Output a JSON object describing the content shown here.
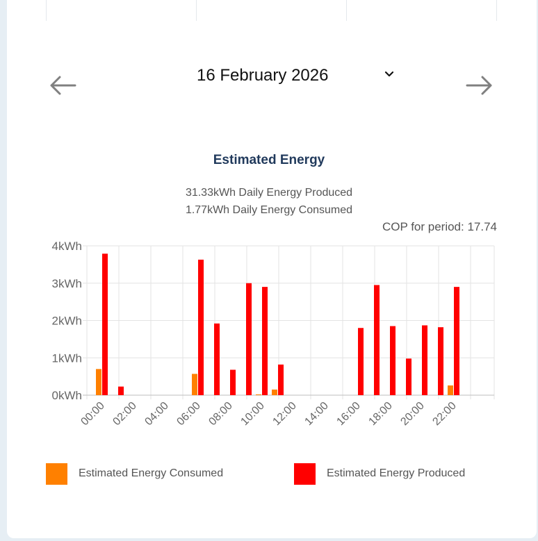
{
  "date_selector": {
    "label": "16 February 2026"
  },
  "navigation": {
    "prev_icon": "arrow-left-icon",
    "next_icon": "arrow-right-icon",
    "dropdown_icon": "chevron-down-icon"
  },
  "stats": {
    "produced": "31.33kWh Daily Energy Produced",
    "consumed": "1.77kWh Daily Energy Consumed",
    "cop": "COP for period: 17.74"
  },
  "colors": {
    "consumed": "#ff8000",
    "produced": "#ff0000",
    "title": "#213a5c"
  },
  "legend": [
    {
      "label": "Estimated Energy Consumed",
      "color": "#ff8000"
    },
    {
      "label": "Estimated Energy Produced",
      "color": "#ff0000"
    }
  ],
  "chart_data": {
    "type": "bar",
    "title": "Estimated Energy",
    "categories": [
      "00:00",
      "01:00",
      "02:00",
      "03:00",
      "04:00",
      "05:00",
      "06:00",
      "07:00",
      "08:00",
      "09:00",
      "10:00",
      "11:00",
      "12:00",
      "13:00",
      "14:00",
      "15:00",
      "16:00",
      "17:00",
      "18:00",
      "19:00",
      "20:00",
      "21:00",
      "22:00"
    ],
    "x_tick_labels": [
      "00:00",
      "02:00",
      "04:00",
      "06:00",
      "08:00",
      "10:00",
      "12:00",
      "14:00",
      "16:00",
      "18:00",
      "20:00",
      "22:00"
    ],
    "y_tick_labels": [
      "0kWh",
      "1kWh",
      "2kWh",
      "3kWh",
      "4kWh"
    ],
    "ylim": [
      0,
      4
    ],
    "grid": true,
    "legend_position": "bottom",
    "series": [
      {
        "name": "Estimated Energy Consumed",
        "color": "#ff8000",
        "values": [
          0.7,
          0,
          0,
          0,
          0,
          0,
          0.57,
          0,
          0,
          0,
          0.02,
          0.15,
          0,
          0,
          0,
          0,
          0,
          0,
          0,
          0,
          0,
          0,
          0.26
        ]
      },
      {
        "name": "Estimated Energy Produced",
        "color": "#ff0000",
        "values": [
          3.79,
          0.23,
          0,
          0,
          0,
          0,
          3.63,
          1.92,
          0.68,
          3.0,
          2.9,
          0.82,
          0,
          0,
          0,
          0,
          1.8,
          2.95,
          1.85,
          0.98,
          1.87,
          1.82,
          2.9
        ]
      }
    ]
  }
}
